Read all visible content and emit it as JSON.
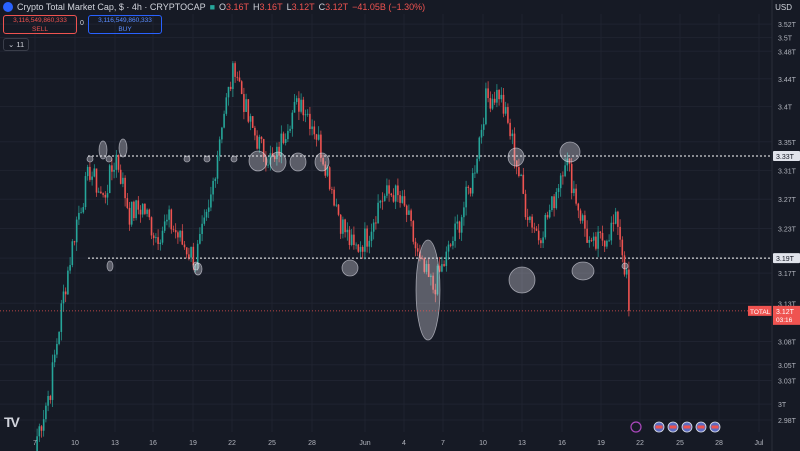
{
  "header": {
    "title": "Crypto Total Market Cap, $ · 4h · CRYPTOCAP",
    "ohlc": [
      {
        "k": "O",
        "v": "3.16T"
      },
      {
        "k": "H",
        "v": "3.16T"
      },
      {
        "k": "L",
        "v": "3.12T"
      },
      {
        "k": "C",
        "v": "3.12T"
      }
    ],
    "change": "−41.05B (−1.30%)",
    "currency": "USD"
  },
  "trade": {
    "sell_price": "3,116,549,860,333",
    "sell_label": "SELL",
    "spread": "0",
    "buy_price": "3,116,549,860,333",
    "buy_label": "BUY"
  },
  "indicators_toggle": "11",
  "colors": {
    "up": "#26a69a",
    "down": "#ef5350",
    "bg": "#161a25",
    "grid": "#1f2330",
    "text": "#b2b5be",
    "price_line": "#ef5350",
    "level": "#ffffff"
  },
  "chart_data": {
    "type": "candlestick",
    "y_scale": "log",
    "ylim": [
      "2.965T",
      "3.535T"
    ],
    "y_ticks": [
      "3.52T",
      "3.5T",
      "3.48T",
      "3.44T",
      "3.4T",
      "3.35T",
      "3.31T",
      "3.27T",
      "3.23T",
      "3.19T",
      "3.17T",
      "3.13T",
      "3.08T",
      "3.05T",
      "3.03T",
      "3T",
      "2.98T"
    ],
    "x_ticks": [
      "7",
      "10",
      "13",
      "16",
      "19",
      "22",
      "25",
      "28",
      "Jun",
      "4",
      "7",
      "10",
      "13",
      "16",
      "19",
      "22",
      "25",
      "28",
      "Jul"
    ],
    "levels": [
      {
        "label": "3.33T",
        "value": 3.33
      },
      {
        "label": "3.19T",
        "value": 3.19
      }
    ],
    "current": {
      "label": "TOTAL",
      "price": "3.12T",
      "countdown": "03:16",
      "value": 3.12
    },
    "close_path": [
      [
        "7",
        2.96
      ],
      [
        "8",
        3.02
      ],
      [
        "9",
        3.14
      ],
      [
        "10",
        3.24
      ],
      [
        "11",
        3.31
      ],
      [
        "12",
        3.27
      ],
      [
        "13",
        3.33
      ],
      [
        "14",
        3.25
      ],
      [
        "15",
        3.26
      ],
      [
        "16",
        3.22
      ],
      [
        "17",
        3.24
      ],
      [
        "18",
        3.21
      ],
      [
        "19",
        3.19
      ],
      [
        "20",
        3.25
      ],
      [
        "21",
        3.38
      ],
      [
        "22",
        3.46
      ],
      [
        "23",
        3.38
      ],
      [
        "24",
        3.34
      ],
      [
        "25",
        3.32
      ],
      [
        "26",
        3.38
      ],
      [
        "27",
        3.41
      ],
      [
        "28",
        3.37
      ],
      [
        "29",
        3.31
      ],
      [
        "30",
        3.24
      ],
      [
        "31",
        3.2
      ],
      [
        "Jun 1",
        3.22
      ],
      [
        "2",
        3.27
      ],
      [
        "3",
        3.28
      ],
      [
        "4",
        3.25
      ],
      [
        "5",
        3.18
      ],
      [
        "6",
        3.15
      ],
      [
        "7",
        3.19
      ],
      [
        "8",
        3.24
      ],
      [
        "9",
        3.3
      ],
      [
        "10",
        3.41
      ],
      [
        "11",
        3.42
      ],
      [
        "12",
        3.35
      ],
      [
        "13",
        3.26
      ],
      [
        "14",
        3.22
      ],
      [
        "15",
        3.26
      ],
      [
        "16",
        3.33
      ],
      [
        "17",
        3.26
      ],
      [
        "18",
        3.2
      ],
      [
        "19",
        3.22
      ],
      [
        "20",
        3.24
      ],
      [
        "21",
        3.12
      ]
    ],
    "highlight_markers": 21,
    "event_icons": 5
  }
}
